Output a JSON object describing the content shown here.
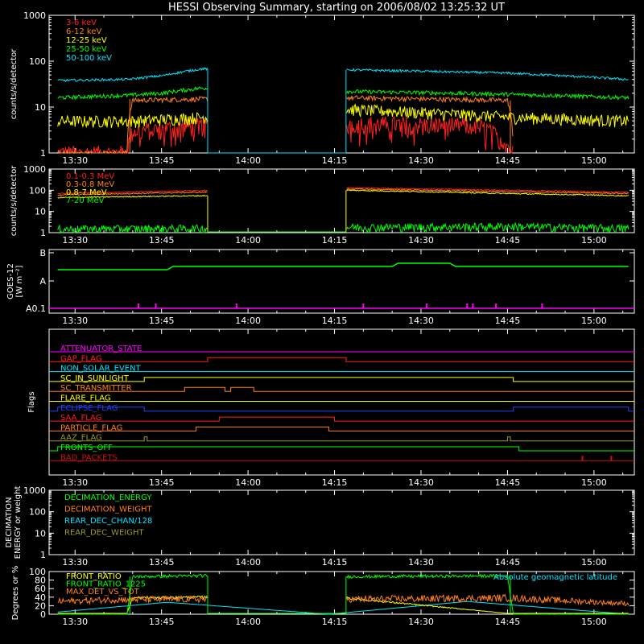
{
  "title": "HESSI Observing Summary, starting on 2006/08/02 13:25:32 UT",
  "colors": {
    "background": "#000000",
    "axes": "#ffffff",
    "red": "#ff2020",
    "orange": "#ff7f20",
    "yellow": "#ffff00",
    "green": "#00ff00",
    "cyan": "#00e5ff",
    "magenta": "#ff00ff",
    "blue": "#2040ff",
    "olive": "#9a9a30",
    "darkred": "#cc1010"
  },
  "chart_data": [
    {
      "type": "line",
      "panel": "obs-low",
      "ylabel": "counts/s/detector",
      "yscale": "log",
      "ylim": [
        1,
        1000
      ],
      "yticks": [
        "1",
        "10",
        "100",
        "1000"
      ],
      "xlim_minutes": [
        13.533,
        62.0
      ],
      "xticks": [
        "13:30",
        "13:45",
        "14:00",
        "14:15",
        "14:30",
        "14:45",
        "15:00"
      ],
      "legend_placement": "top-left",
      "data_gap": {
        "start": "13:53",
        "end": "14:17"
      },
      "series": [
        {
          "name": "3-6 keV",
          "color": "#ff2020",
          "x": [
            "13:27",
            "13:39",
            "13:40",
            "13:52",
            "14:17",
            "14:40",
            "14:46"
          ],
          "y": [
            1,
            1,
            3,
            4,
            4.5,
            4,
            1
          ]
        },
        {
          "name": "6-12 keV",
          "color": "#ff7f20",
          "x": [
            "13:27",
            "13:39",
            "13:40",
            "13:52",
            "14:17",
            "14:45",
            "14:46"
          ],
          "y": [
            1,
            1,
            14,
            15,
            16,
            14,
            1
          ]
        },
        {
          "name": "12-25 keV",
          "color": "#ffff00",
          "x": [
            "13:27",
            "13:39",
            "13:40",
            "13:52",
            "14:17",
            "14:46",
            "15:06"
          ],
          "y": [
            5,
            5,
            5,
            6,
            9,
            6,
            5
          ]
        },
        {
          "name": "25-50 keV",
          "color": "#00ff00",
          "x": [
            "13:27",
            "13:39",
            "13:45",
            "13:52",
            "14:17",
            "14:45",
            "15:06"
          ],
          "y": [
            16,
            18,
            20,
            26,
            22,
            19,
            16
          ]
        },
        {
          "name": "50-100 keV",
          "color": "#00e5ff",
          "x": [
            "13:27",
            "13:39",
            "13:45",
            "13:52",
            "14:17",
            "14:45",
            "15:06"
          ],
          "y": [
            38,
            40,
            48,
            68,
            65,
            55,
            40
          ]
        }
      ]
    },
    {
      "type": "line",
      "panel": "obs-high",
      "ylabel": "counts/s/detector",
      "yscale": "log",
      "ylim": [
        1,
        1000
      ],
      "yticks": [
        "1",
        "10",
        "100",
        "1000"
      ],
      "xticks": [
        "13:30",
        "13:45",
        "14:00",
        "14:15",
        "14:30",
        "14:45",
        "15:00"
      ],
      "legend_placement": "top-left",
      "series": [
        {
          "name": "0.1-0.3 MeV",
          "color": "#ff2020",
          "x": [
            "13:27",
            "13:52",
            "14:17",
            "14:45",
            "15:06"
          ],
          "y": [
            70,
            95,
            130,
            100,
            80
          ]
        },
        {
          "name": "0.3-0.8 MeV",
          "color": "#ff7f20",
          "x": [
            "13:27",
            "13:52",
            "14:17",
            "14:45",
            "15:06"
          ],
          "y": [
            60,
            80,
            115,
            85,
            70
          ]
        },
        {
          "name": "0.8-7 MeV",
          "color": "#ffff00",
          "x": [
            "13:27",
            "13:52",
            "14:17",
            "14:45",
            "15:06"
          ],
          "y": [
            45,
            55,
            100,
            70,
            55
          ]
        },
        {
          "name": "7-20 MeV",
          "color": "#00ff00",
          "x": [
            "13:27",
            "13:52",
            "14:17",
            "14:45",
            "15:06"
          ],
          "y": [
            1.5,
            1.6,
            1.8,
            2,
            1.6
          ]
        }
      ]
    },
    {
      "type": "line",
      "panel": "goes",
      "ylabel": "GOES-12",
      "ylabel_unit": "[W m⁻²]",
      "yticks": [
        "A0.1",
        "A",
        "B"
      ],
      "series": [
        {
          "color": "#00ff00",
          "x": [
            "13:27",
            "13:40",
            "13:46",
            "13:47",
            "14:25",
            "14:26",
            "14:35",
            "14:36",
            "15:06"
          ],
          "y": [
            "A+",
            "A+",
            "A+",
            "A++",
            "A++",
            "B-",
            "B-",
            "A++",
            "A++"
          ]
        },
        {
          "color": "#ff00ff",
          "x": [
            "13:27",
            "15:06"
          ],
          "y": [
            "A0.1",
            "A0.1"
          ]
        }
      ]
    },
    {
      "type": "line",
      "panel": "flags",
      "ylabel": "Flags",
      "flags": [
        {
          "name": "ATTENUATOR_STATE",
          "color": "#ff00ff",
          "segments_on": []
        },
        {
          "name": "GAP_FLAG",
          "color": "#ff2020",
          "segments_on": [
            [
              "13:53",
              "14:17"
            ]
          ]
        },
        {
          "name": "NON_SOLAR_EVENT",
          "color": "#00e5ff",
          "segments_on": []
        },
        {
          "name": "SC_IN_SUNLIGHT",
          "color": "#ffff00",
          "segments_on": [
            [
              "13:42",
              "14:46"
            ]
          ]
        },
        {
          "name": "SC_TRANSMITTER",
          "color": "#ff7f20",
          "segments_on": [
            [
              "13:49",
              "13:56"
            ],
            [
              "13:57",
              "14:01"
            ]
          ]
        },
        {
          "name": "FLARE_FLAG",
          "color": "#ffff00",
          "segments_on": []
        },
        {
          "name": "ECLIPSE_FLAG",
          "color": "#2040ff",
          "segments_on": [
            [
              "13:27",
              "13:42"
            ],
            [
              "14:46",
              "15:06"
            ]
          ]
        },
        {
          "name": "SAA_FLAG",
          "color": "#ff2020",
          "segments_on": [
            [
              "13:55",
              "14:15"
            ]
          ]
        },
        {
          "name": "PARTICLE_FLAG",
          "color": "#ff7f20",
          "segments_on": [
            [
              "13:51",
              "14:14"
            ]
          ]
        },
        {
          "name": "AAZ_FLAG",
          "color": "#9a9a30",
          "segments_on": [
            [
              "13:42",
              "13:42.5"
            ],
            [
              "14:45",
              "14:45.5"
            ]
          ]
        },
        {
          "name": "FRONTS_OFF",
          "color": "#00ff00",
          "segments_on": [
            [
              "13:27",
              "14:47"
            ]
          ]
        },
        {
          "name": "BAD_PACKETS",
          "color": "#cc1010",
          "segments_on": []
        }
      ]
    },
    {
      "type": "line",
      "panel": "decimation",
      "ylabel": "DECIMATION ENERGY or weight",
      "yscale": "log",
      "ylim": [
        1,
        1000
      ],
      "yticks": [
        "1",
        "10",
        "100",
        "1000"
      ],
      "legend_placement": "top-left",
      "series": [
        {
          "name": "DECIMATION_ENERGY",
          "color": "#00ff00"
        },
        {
          "name": "DECIMATION_WEIGHT",
          "color": "#ff7f20"
        },
        {
          "name": "REAR_DEC_CHAN/128",
          "color": "#00e5ff"
        },
        {
          "name": "REAR_DEC_WEIGHT",
          "color": "#9a9a30"
        }
      ]
    },
    {
      "type": "line",
      "panel": "ratios",
      "ylabel": "Degrees or %",
      "ylim": [
        0,
        100
      ],
      "yticks": [
        "0",
        "20",
        "40",
        "60",
        "80",
        "100"
      ],
      "legend_placement": "top-left",
      "annotation": "Absolute geomagnetic latitude",
      "series": [
        {
          "name": "FRONT_RATIO",
          "color": "#ffff00",
          "x": [
            "13:27",
            "13:39",
            "13:40",
            "13:52",
            "14:17",
            "14:45",
            "15:06"
          ],
          "y": [
            2,
            2,
            38,
            40,
            38,
            2,
            2
          ]
        },
        {
          "name": "FRONT_RATIO_1225",
          "color": "#00ff00",
          "x": [
            "13:27",
            "13:39",
            "13:40",
            "13:52",
            "14:17",
            "14:45",
            "14:46",
            "15:06"
          ],
          "y": [
            0,
            0,
            88,
            90,
            88,
            90,
            0,
            0
          ]
        },
        {
          "name": "MAX_DET_VS_TOT",
          "color": "#ff7f20",
          "x": [
            "13:27",
            "13:39",
            "13:52",
            "14:17",
            "14:45",
            "15:06"
          ],
          "y": [
            30,
            35,
            35,
            35,
            38,
            25
          ]
        },
        {
          "name": "Absolute geomagnetic latitude",
          "color": "#00e5ff",
          "x": [
            "13:27",
            "13:46",
            "14:14",
            "14:38",
            "15:06"
          ],
          "y": [
            5,
            28,
            0,
            30,
            0
          ]
        }
      ]
    }
  ]
}
